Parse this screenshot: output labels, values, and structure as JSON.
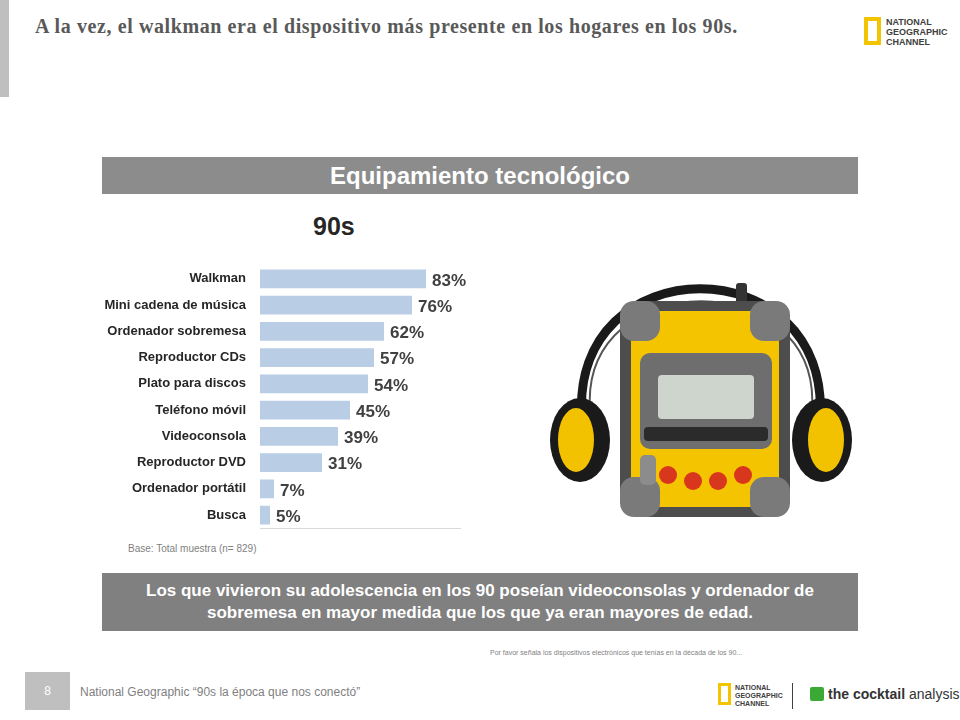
{
  "header": {
    "title": "A la vez, el walkman era el dispositivo más presente en los hogares en los 90s.",
    "logo": [
      "NATIONAL",
      "GEOGRAPHIC",
      "CHANNEL"
    ]
  },
  "panel_title": "Equipamiento tecnológico",
  "chart_data": {
    "type": "bar",
    "orientation": "horizontal",
    "title": "90s",
    "categories": [
      "Walkman",
      "Mini cadena de música",
      "Ordenador sobremesa",
      "Reproductor CDs",
      "Plato para discos",
      "Teléfono móvil",
      "Videoconsola",
      "Reproductor DVD",
      "Ordenador portátil",
      "Busca"
    ],
    "values": [
      83,
      76,
      62,
      57,
      54,
      45,
      39,
      31,
      7,
      5
    ],
    "value_labels": [
      "83%",
      "76%",
      "62%",
      "57%",
      "54%",
      "45%",
      "39%",
      "31%",
      "7%",
      "5%"
    ],
    "data_labels": true,
    "color": "#b9cde5",
    "xlim": [
      0,
      100
    ],
    "tick_labels": "y",
    "grid": false,
    "annotation": "Base: Total muestra (n= 829)"
  },
  "conclusion": "Los que vivieron su adolescencia en los 90 poseían videoconsolas y ordenador de sobremesa en mayor medida que los que ya eran mayores de edad.",
  "question": "Por favor señala los dispositivos electrónicos que tenías en la década de los 90...",
  "footer": {
    "page": "8",
    "source": "National Geographic “90s la época que nos conectó”",
    "partner": [
      "the cocktail",
      "analysis"
    ]
  }
}
